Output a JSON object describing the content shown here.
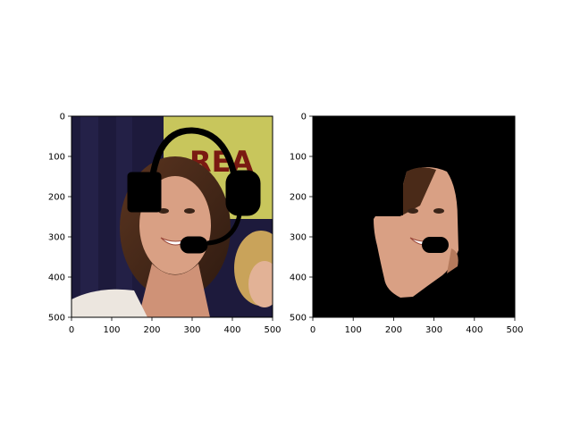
{
  "chart_data": [
    {
      "type": "image",
      "title": "",
      "xlabel": "",
      "ylabel": "",
      "xlim": [
        0,
        500
      ],
      "ylim": [
        500,
        0
      ],
      "xticks": [
        "0",
        "100",
        "200",
        "300",
        "400",
        "500"
      ],
      "yticks": [
        "0",
        "100",
        "200",
        "300",
        "400",
        "500"
      ],
      "image_content": "photo of smiling woman with headset-shaped black mask overlay",
      "mask_shapes": [
        {
          "kind": "headband-arc",
          "cx": 300,
          "cy": 190,
          "rx": 135,
          "ry": 150
        },
        {
          "kind": "ear-cup",
          "x": 140,
          "y": 140,
          "w": 85,
          "h": 95
        },
        {
          "kind": "ear-cup",
          "x": 385,
          "y": 135,
          "w": 75,
          "h": 110
        },
        {
          "kind": "mic-boom",
          "points": [
            [
              420,
              245
            ],
            [
              390,
              310
            ],
            [
              285,
              320
            ]
          ]
        },
        {
          "kind": "mic-tip",
          "x": 270,
          "y": 300,
          "w": 55,
          "h": 45
        }
      ]
    },
    {
      "type": "image",
      "title": "",
      "xlabel": "",
      "ylabel": "",
      "xlim": [
        0,
        500
      ],
      "ylim": [
        500,
        0
      ],
      "xticks": [
        "0",
        "100",
        "200",
        "300",
        "400",
        "500"
      ],
      "yticks": [
        "0",
        "100",
        "200",
        "300",
        "400",
        "500"
      ],
      "image_content": "segmented face region on black background with mask cut-outs",
      "mask_shapes": [
        {
          "kind": "ear-cup-cut",
          "x": 140,
          "y": 140,
          "w": 85,
          "h": 95
        },
        {
          "kind": "mic-tip",
          "x": 270,
          "y": 300,
          "w": 55,
          "h": 45
        }
      ]
    }
  ],
  "colors": {
    "background": "#ffffff",
    "axes": "#000000",
    "mask": "#000000",
    "curtain": "#1d1a3c",
    "banner": "#c8c65c",
    "hair": "#4a2a18",
    "skin": "#d9a084",
    "shirt": "#ece6df"
  }
}
